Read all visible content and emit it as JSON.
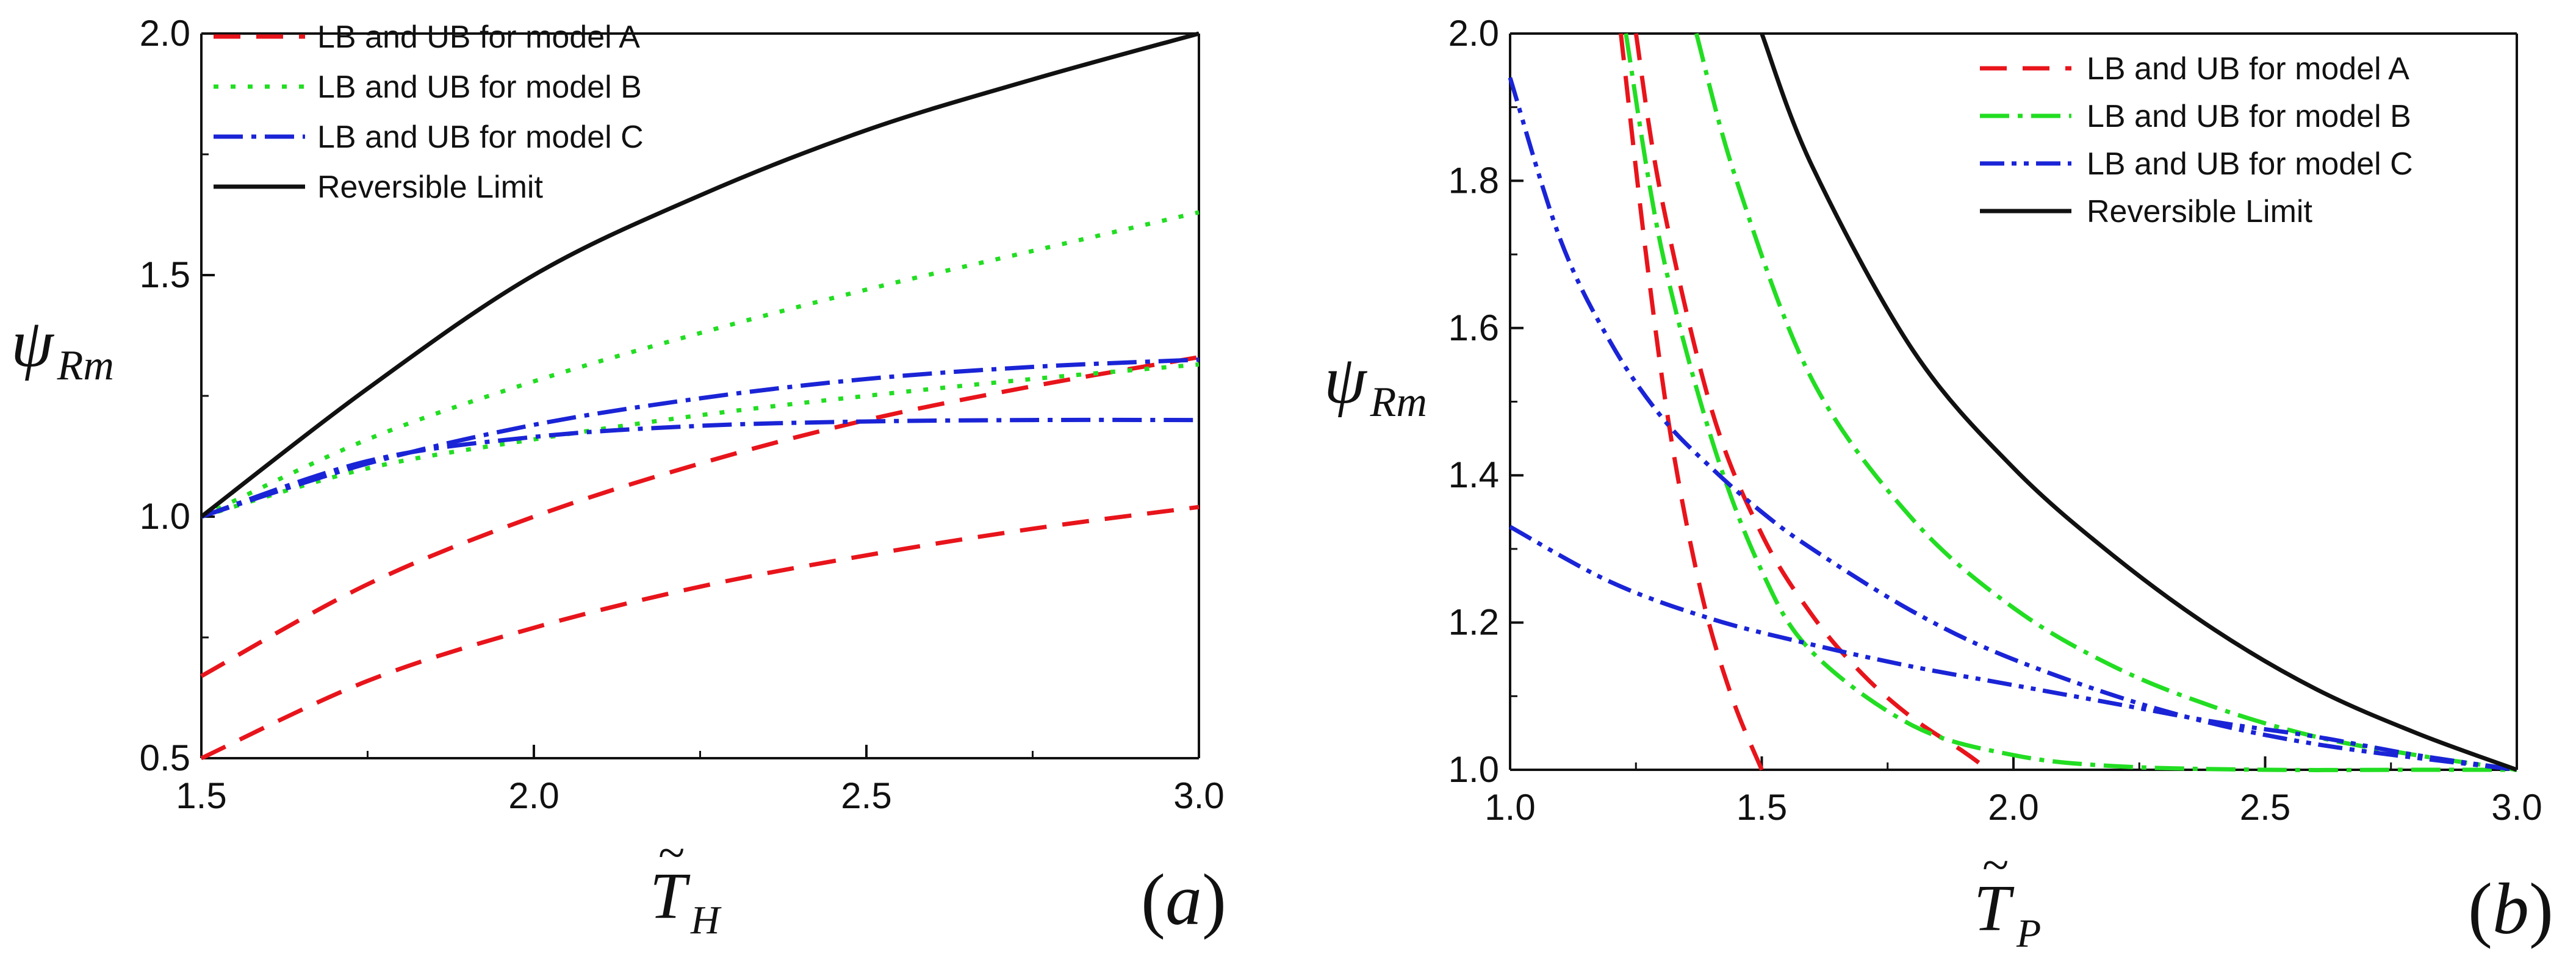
{
  "chart_data": [
    {
      "type": "line",
      "panel": "a",
      "panel_label_text": "(a)",
      "panel_label_open": "(",
      "panel_label_letter": "a",
      "panel_label_close": ")",
      "xlabel": "T̃_H",
      "xlabel_main": "T",
      "xlabel_sub": "H",
      "ylabel": "ψ_Rm",
      "ylabel_main": "ψ",
      "ylabel_sub": "Rm",
      "xlim": [
        1.5,
        3.0
      ],
      "ylim": [
        0.5,
        2.0
      ],
      "xticks": [
        "1.5",
        "2.0",
        "2.5",
        "3.0"
      ],
      "yticks": [
        "0.5",
        "1.0",
        "1.5",
        "2.0"
      ],
      "legend_position": "top-left",
      "legend": [
        {
          "label": "LB and UB for model A",
          "series": "A"
        },
        {
          "label": "LB and UB for model B",
          "series": "B"
        },
        {
          "label": "LB and UB for model C",
          "series": "C"
        },
        {
          "label": "Reversible Limit",
          "series": "R"
        }
      ],
      "series": [
        {
          "name": "model A UB",
          "style": "A",
          "x": [
            1.5,
            1.75,
            2.0,
            2.25,
            2.5,
            2.75,
            3.0
          ],
          "y": [
            0.67,
            0.86,
            1.0,
            1.11,
            1.2,
            1.27,
            1.33
          ]
        },
        {
          "name": "model A LB",
          "style": "A",
          "x": [
            1.5,
            1.75,
            2.0,
            2.25,
            2.5,
            2.75,
            3.0
          ],
          "y": [
            0.5,
            0.66,
            0.77,
            0.855,
            0.92,
            0.975,
            1.02
          ]
        },
        {
          "name": "model B UB",
          "style": "B",
          "x": [
            1.5,
            1.75,
            2.0,
            2.25,
            2.5,
            2.75,
            3.0
          ],
          "y": [
            1.0,
            1.16,
            1.28,
            1.38,
            1.47,
            1.55,
            1.63
          ]
        },
        {
          "name": "model B LB",
          "style": "B",
          "x": [
            1.5,
            1.75,
            2.0,
            2.25,
            2.5,
            2.75,
            3.0
          ],
          "y": [
            1.0,
            1.1,
            1.16,
            1.21,
            1.25,
            1.285,
            1.315
          ]
        },
        {
          "name": "model C UB",
          "style": "C",
          "x": [
            1.5,
            1.75,
            2.0,
            2.25,
            2.5,
            2.75,
            3.0
          ],
          "y": [
            1.0,
            1.11,
            1.19,
            1.245,
            1.285,
            1.31,
            1.325
          ]
        },
        {
          "name": "model C LB",
          "style": "C",
          "x": [
            1.5,
            1.75,
            2.0,
            2.25,
            2.5,
            2.75,
            3.0
          ],
          "y": [
            1.0,
            1.115,
            1.165,
            1.188,
            1.197,
            1.2,
            1.2
          ]
        },
        {
          "name": "Reversible Limit",
          "style": "R",
          "x": [
            1.5,
            1.75,
            2.0,
            2.25,
            2.5,
            2.75,
            3.0
          ],
          "y": [
            1.0,
            1.265,
            1.5,
            1.665,
            1.8,
            1.905,
            2.0
          ]
        }
      ]
    },
    {
      "type": "line",
      "panel": "b",
      "panel_label_text": "(b)",
      "panel_label_open": "(",
      "panel_label_letter": "b",
      "panel_label_close": ")",
      "xlabel": "T̃_P",
      "xlabel_main": "T",
      "xlabel_sub": "P",
      "ylabel": "ψ_Rm",
      "ylabel_main": "ψ",
      "ylabel_sub": "Rm",
      "xlim": [
        1.0,
        3.0
      ],
      "ylim": [
        1.0,
        2.0
      ],
      "xticks": [
        "1.0",
        "1.5",
        "2.0",
        "2.5",
        "3.0"
      ],
      "yticks": [
        "1.0",
        "1.2",
        "1.4",
        "1.6",
        "1.8",
        "2.0"
      ],
      "legend_position": "top-right",
      "legend": [
        {
          "label": "LB and UB for model A",
          "series": "A"
        },
        {
          "label": "LB and UB for model B",
          "series": "B2"
        },
        {
          "label": "LB and UB for model C",
          "series": "C2"
        },
        {
          "label": "Reversible Limit",
          "series": "R"
        }
      ],
      "series": [
        {
          "name": "model A LB",
          "style": "A",
          "x": [
            1.22,
            1.27,
            1.32,
            1.38,
            1.44,
            1.5
          ],
          "y": [
            2.0,
            1.7,
            1.45,
            1.24,
            1.1,
            1.0
          ]
        },
        {
          "name": "model A UB",
          "style": "A",
          "x": [
            1.25,
            1.3,
            1.4,
            1.5,
            1.6,
            1.7,
            1.8,
            1.9,
            1.95
          ],
          "y": [
            2.0,
            1.78,
            1.49,
            1.32,
            1.21,
            1.13,
            1.07,
            1.025,
            1.0
          ]
        },
        {
          "name": "model B LB",
          "style": "B2",
          "x": [
            1.23,
            1.3,
            1.4,
            1.5,
            1.6,
            1.8,
            2.0,
            2.2,
            2.5,
            2.8,
            3.0
          ],
          "y": [
            2.0,
            1.71,
            1.45,
            1.27,
            1.16,
            1.06,
            1.02,
            1.005,
            1.0,
            1.0,
            1.0
          ]
        },
        {
          "name": "model B UB",
          "style": "B2",
          "x": [
            1.37,
            1.45,
            1.6,
            1.8,
            2.0,
            2.2,
            2.4,
            2.6,
            2.8,
            3.0
          ],
          "y": [
            2.0,
            1.8,
            1.53,
            1.34,
            1.22,
            1.14,
            1.085,
            1.045,
            1.02,
            1.0
          ]
        },
        {
          "name": "model C UB",
          "style": "C2",
          "x": [
            1.0,
            1.1,
            1.2,
            1.3,
            1.4,
            1.5,
            1.6,
            1.8,
            2.0,
            2.3,
            2.6,
            3.0
          ],
          "y": [
            1.94,
            1.72,
            1.58,
            1.48,
            1.41,
            1.35,
            1.3,
            1.215,
            1.15,
            1.08,
            1.035,
            1.0
          ]
        },
        {
          "name": "model C LB",
          "style": "C2",
          "x": [
            1.0,
            1.2,
            1.4,
            1.6,
            1.8,
            2.0,
            2.2,
            2.4,
            2.6,
            2.8,
            3.0
          ],
          "y": [
            1.33,
            1.255,
            1.205,
            1.17,
            1.14,
            1.115,
            1.09,
            1.065,
            1.045,
            1.02,
            1.0
          ]
        },
        {
          "name": "Reversible Limit",
          "style": "R",
          "x": [
            1.5,
            1.6,
            1.8,
            2.0,
            2.2,
            2.4,
            2.6,
            2.8,
            3.0
          ],
          "y": [
            2.0,
            1.82,
            1.57,
            1.41,
            1.29,
            1.19,
            1.11,
            1.05,
            1.0
          ]
        }
      ]
    }
  ],
  "styles": {
    "A": {
      "color": "#e8141b",
      "dash": "44 26"
    },
    "B": {
      "color": "#22dd22",
      "dash": "8 20"
    },
    "B2": {
      "color": "#22dd22",
      "dash": "48 14 8 14"
    },
    "C": {
      "color": "#1a24d6",
      "dash": "48 14 8 14"
    },
    "C2": {
      "color": "#1a24d6",
      "dash": "40 12 8 12 8 12"
    },
    "R": {
      "color": "#111111",
      "dash": ""
    }
  }
}
